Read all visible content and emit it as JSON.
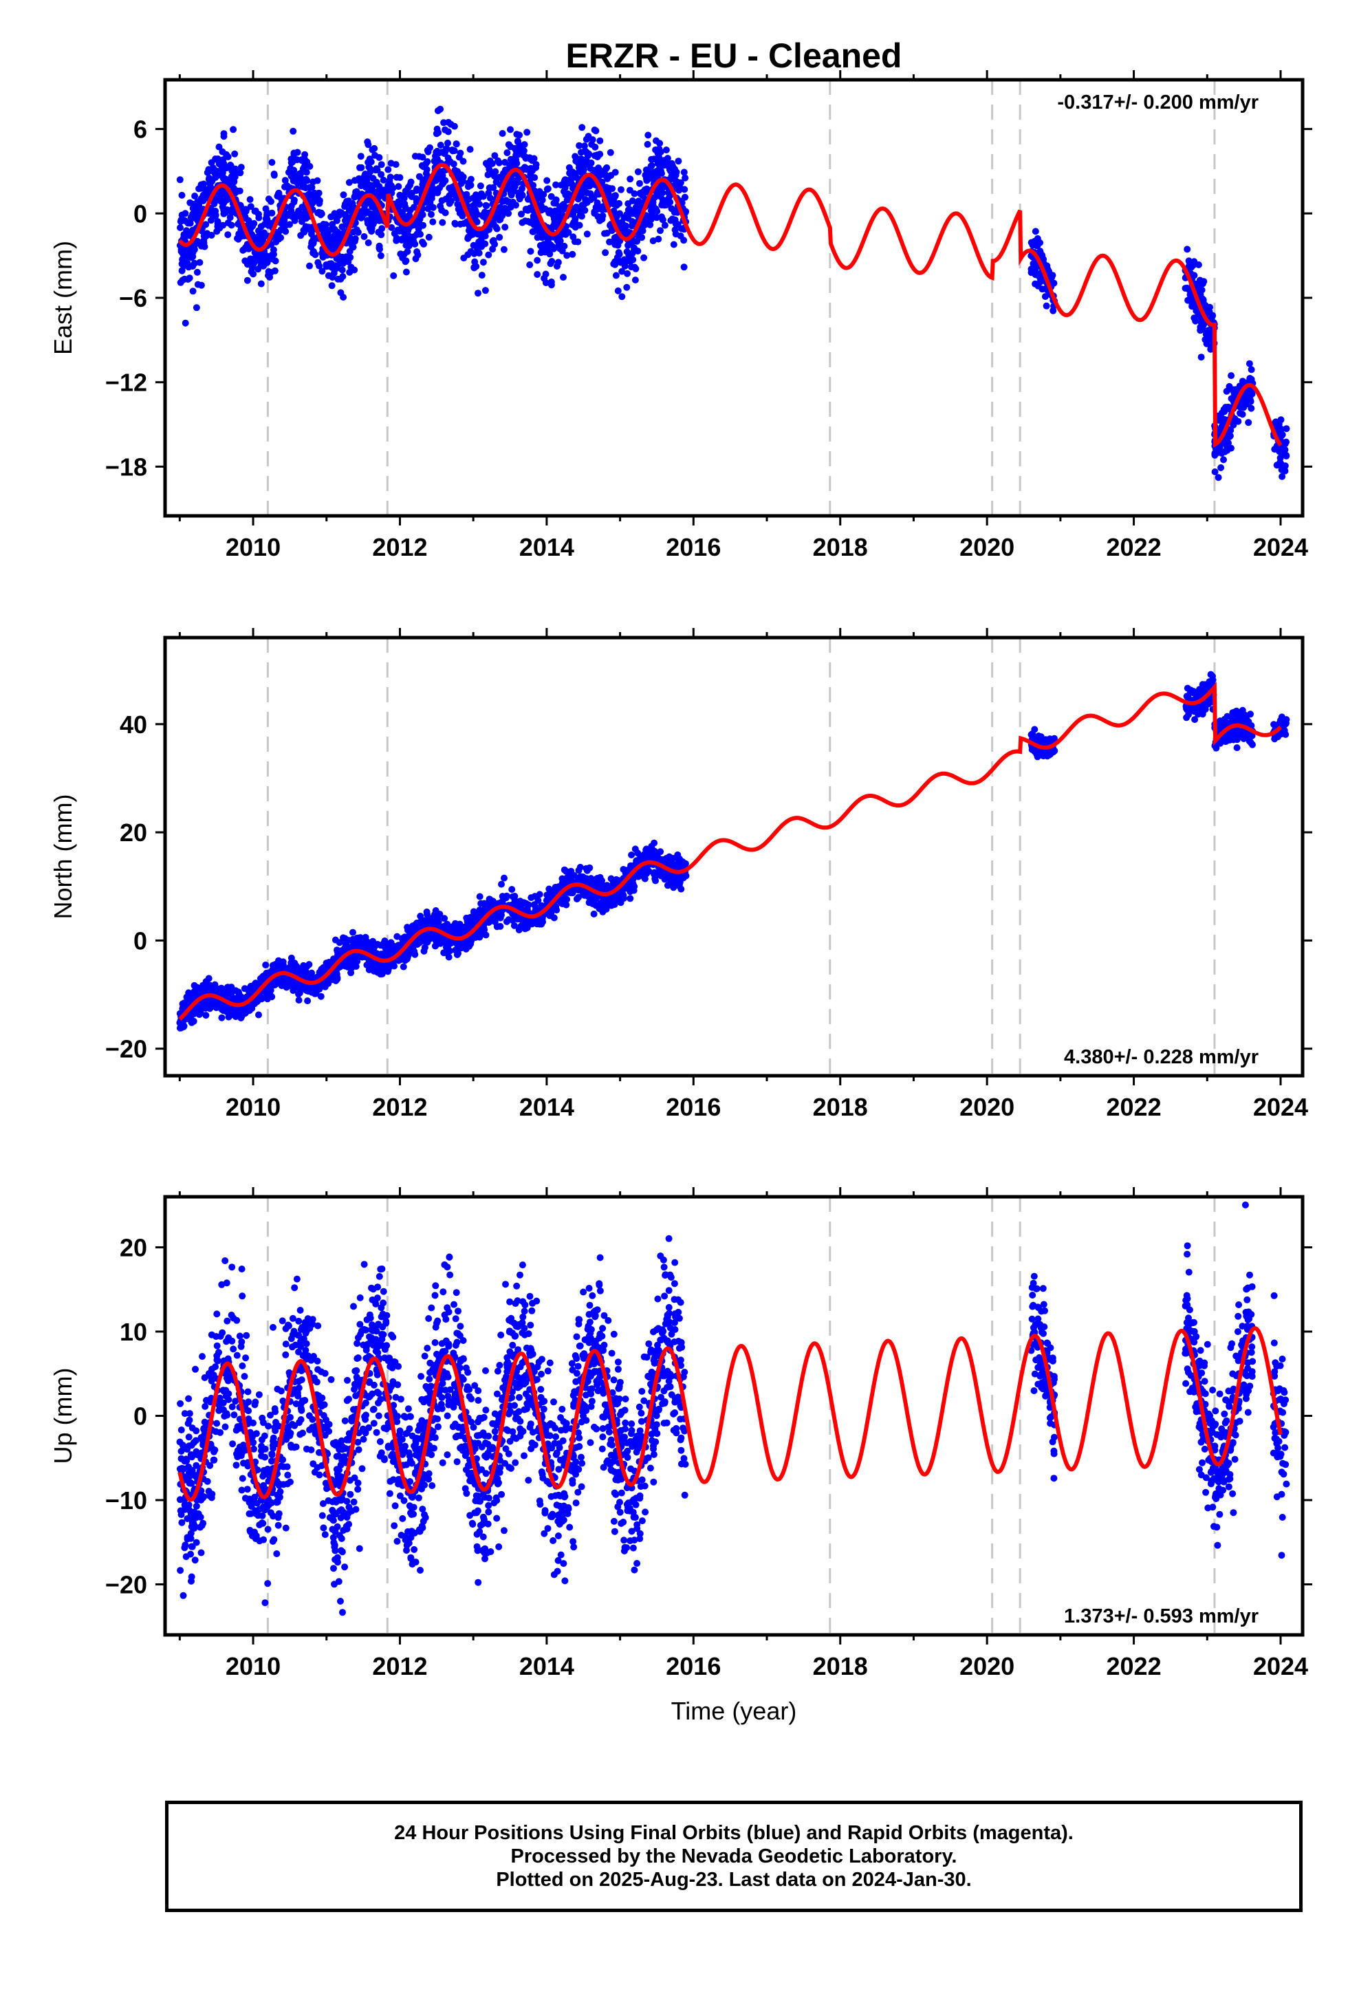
{
  "chart_data": [
    {
      "type": "scatter",
      "panel": "east",
      "title": "ERZR  - EU - Cleaned",
      "xlabel": "",
      "ylabel": "East (mm)",
      "xlim": [
        2008.8,
        2024.3
      ],
      "ylim": [
        -21.5,
        9.5
      ],
      "yticks": [
        6,
        0,
        -6,
        -12,
        -18
      ],
      "xticks": [
        2010,
        2012,
        2014,
        2016,
        2018,
        2020,
        2022,
        2024
      ],
      "rate_label": "-0.317+/- 0.200 mm/yr",
      "equipment_changes": [
        2010.2,
        2011.83,
        2017.86,
        2020.07,
        2020.45,
        2023.1
      ],
      "model": {
        "offset": 0,
        "rate": -0.35,
        "amplitude": 2.2,
        "phase": 0.33,
        "steps": [
          {
            "t": 2011.83,
            "v": 2.5
          },
          {
            "t": 2017.86,
            "v": -1.0
          },
          {
            "t": 2020.07,
            "v": 1.2
          },
          {
            "t": 2020.45,
            "v": -3.5
          },
          {
            "t": 2023.1,
            "v": -8.5
          }
        ]
      },
      "obs_segments": [
        {
          "start": 2009.0,
          "end": 2015.9,
          "noise": 1.6
        },
        {
          "start": 2020.6,
          "end": 2020.92,
          "noise": 0.8
        },
        {
          "start": 2022.7,
          "end": 2023.62,
          "noise": 1.0
        },
        {
          "start": 2023.9,
          "end": 2024.08,
          "noise": 0.7
        }
      ],
      "model_range": [
        2009.0,
        2024.0
      ]
    },
    {
      "type": "scatter",
      "panel": "north",
      "xlabel": "",
      "ylabel": "North (mm)",
      "xlim": [
        2008.8,
        2024.3
      ],
      "ylim": [
        -25,
        56
      ],
      "yticks": [
        40,
        20,
        0,
        -20
      ],
      "xticks": [
        2010,
        2012,
        2014,
        2016,
        2018,
        2020,
        2022,
        2024
      ],
      "rate_label": "4.380+/- 0.228 mm/yr",
      "equipment_changes": [
        2010.2,
        2011.83,
        2017.86,
        2020.07,
        2020.45,
        2023.1
      ],
      "model": {
        "offset": -13.5,
        "rate": 4.1,
        "amplitude": 1.8,
        "phase": 0.1,
        "steps": [
          {
            "t": 2020.45,
            "v": 2.5
          },
          {
            "t": 2023.1,
            "v": -10.0
          }
        ]
      },
      "obs_segments": [
        {
          "start": 2009.0,
          "end": 2015.9,
          "noise": 1.4
        },
        {
          "start": 2020.6,
          "end": 2020.92,
          "noise": 1.0
        },
        {
          "start": 2022.7,
          "end": 2023.62,
          "noise": 1.4
        },
        {
          "start": 2023.9,
          "end": 2024.08,
          "noise": 0.8
        }
      ],
      "model_range": [
        2009.0,
        2024.0
      ]
    },
    {
      "type": "scatter",
      "panel": "up",
      "xlabel": "Time (year)",
      "ylabel": "Up (mm)",
      "xlim": [
        2008.8,
        2024.3
      ],
      "ylim": [
        -26,
        26
      ],
      "yticks": [
        20,
        10,
        0,
        -10,
        -20
      ],
      "xticks": [
        2010,
        2012,
        2014,
        2016,
        2018,
        2020,
        2022,
        2024
      ],
      "rate_label": "1.373+/- 0.593 mm/yr",
      "equipment_changes": [
        2010.2,
        2011.83,
        2017.86,
        2020.07,
        2020.45,
        2023.1
      ],
      "model": {
        "offset": -2.0,
        "rate": 0.3,
        "amplitude": 8.0,
        "phase": 0.4,
        "steps": []
      },
      "obs_segments": [
        {
          "start": 2009.0,
          "end": 2015.9,
          "noise": 5.0
        },
        {
          "start": 2020.6,
          "end": 2020.92,
          "noise": 3.0
        },
        {
          "start": 2022.7,
          "end": 2023.62,
          "noise": 4.0
        },
        {
          "start": 2023.9,
          "end": 2024.08,
          "noise": 5.0
        }
      ],
      "model_range": [
        2009.0,
        2024.0
      ]
    }
  ],
  "colors": {
    "observations": "#0000ff",
    "model": "#ff0000",
    "equipment_change": "#c8c8c8"
  },
  "footer": {
    "line1": "24 Hour Positions Using Final Orbits (blue) and Rapid Orbits (magenta).",
    "line2": "Processed by the Nevada Geodetic Laboratory.",
    "line3": "Plotted on 2025-Aug-23. Last data on 2024-Jan-30."
  }
}
